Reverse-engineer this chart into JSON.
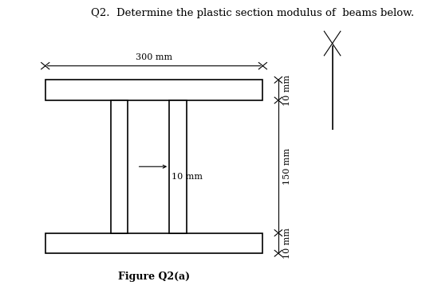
{
  "title": "Q2.  Determine the plastic section modulus of  beams below.",
  "figure_label": "Figure Q2(a)",
  "title_fontsize": 9.5,
  "label_fontsize": 9,
  "dim_fontsize": 8,
  "bg_color": "#ffffff",
  "beam_color": "#000000",
  "beam_linewidth": 1.2,
  "dim_300mm_label": "300 mm",
  "dim_10mm_top_label": "10 mm",
  "dim_150mm_label": "150 mm",
  "dim_10mm_bot_label": "10 mm",
  "dim_10mm_web_label": "10 mm"
}
